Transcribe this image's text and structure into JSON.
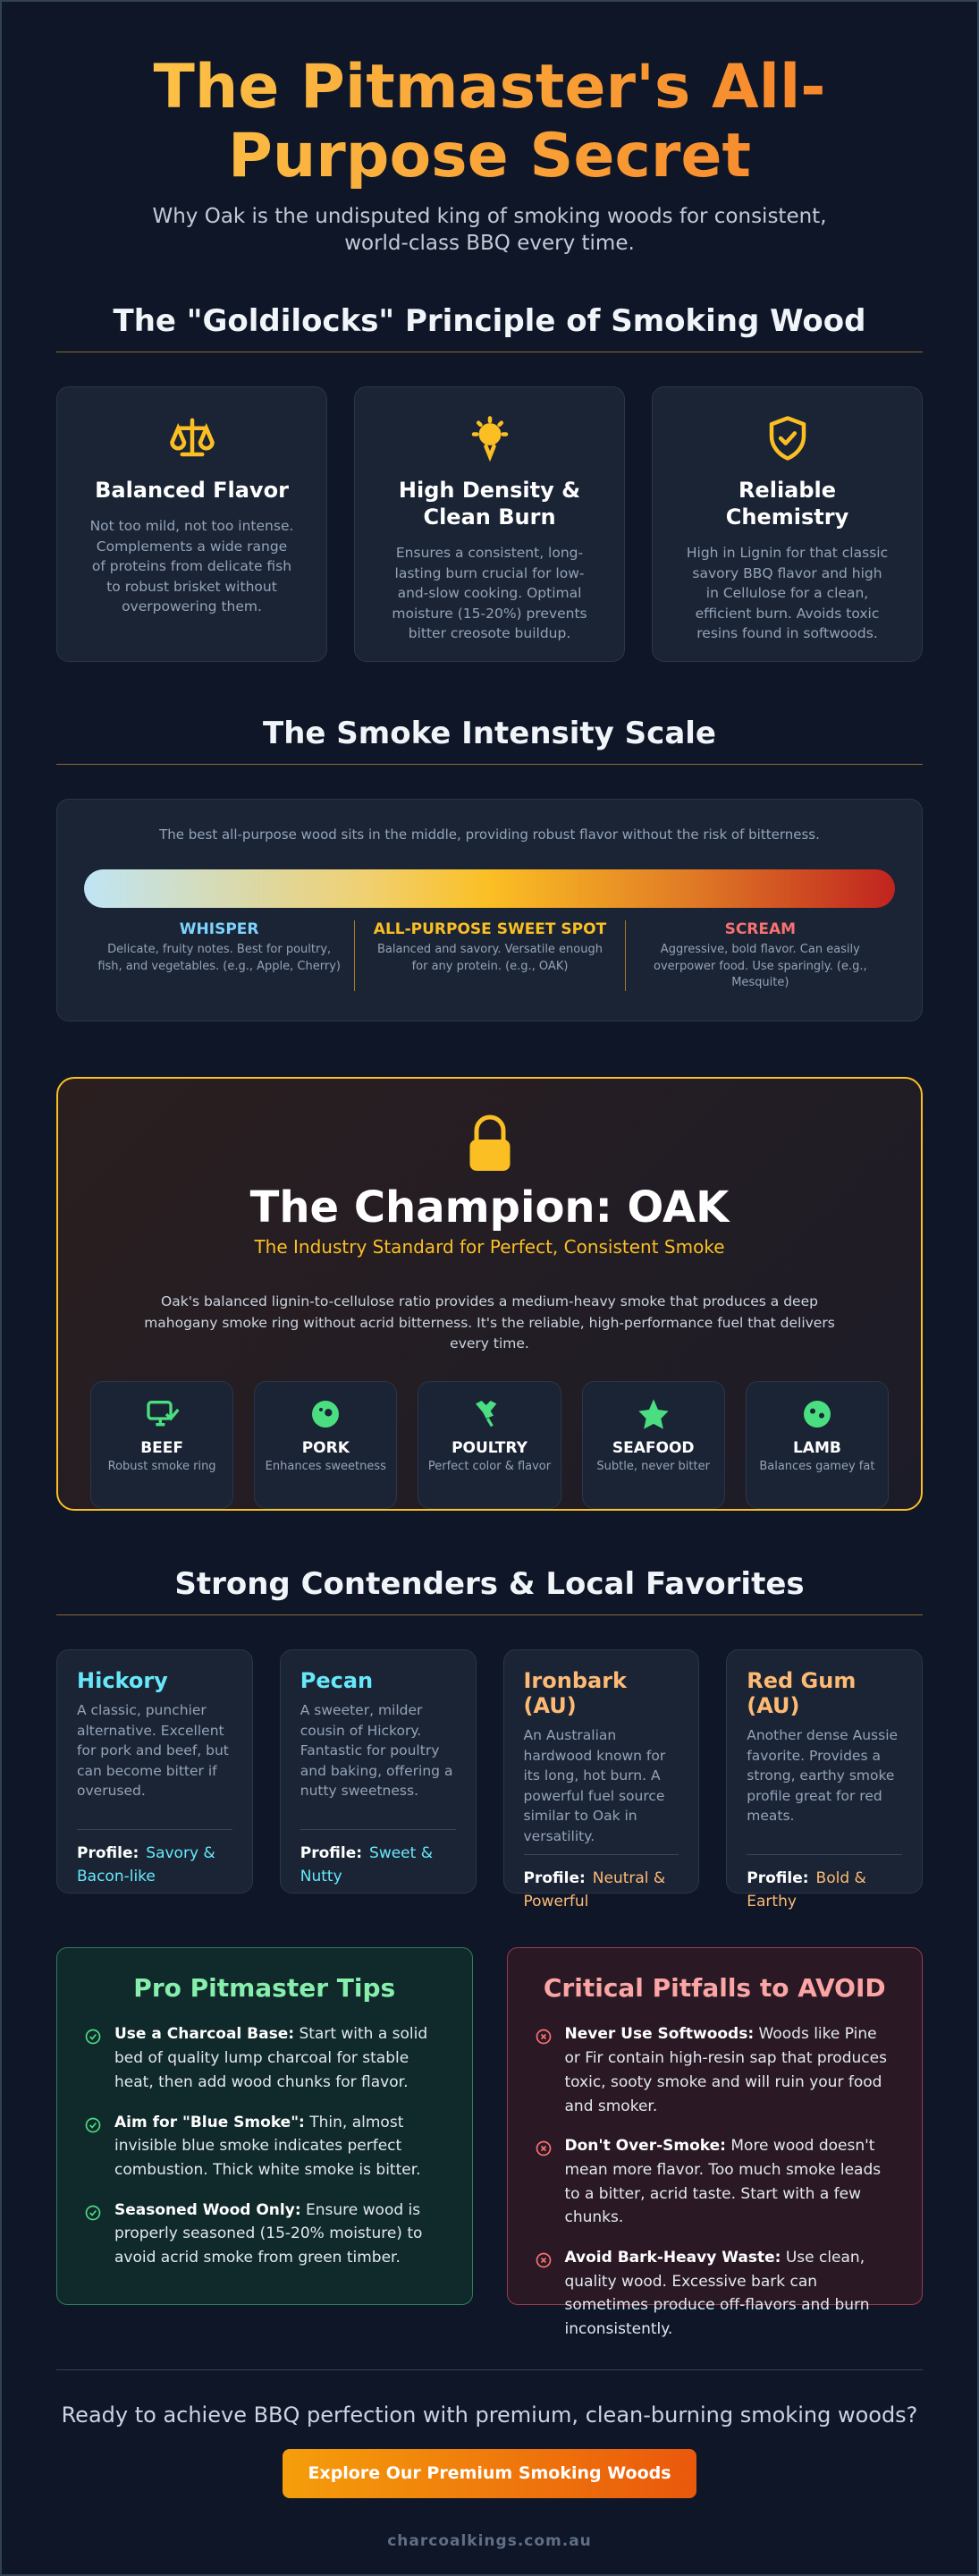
{
  "header": {
    "title": "The Pitmaster's All-Purpose Secret",
    "subtitle": "Why Oak is the undisputed king of smoking woods for consistent, world-class BBQ every time."
  },
  "goldilocks": {
    "heading": "The \"Goldilocks\" Principle of Smoking Wood",
    "cards": [
      {
        "title": "Balanced Flavor",
        "text": "Not too mild, not too intense. Complements a wide range of proteins from delicate fish to robust brisket without overpowering them."
      },
      {
        "title": "High Density & Clean Burn",
        "text": "Ensures a consistent, long-lasting burn crucial for low-and-slow cooking. Optimal moisture (15-20%) prevents bitter creosote buildup."
      },
      {
        "title": "Reliable Chemistry",
        "text": "High in Lignin for that classic savory BBQ flavor and high in Cellulose for a clean, efficient burn. Avoids toxic resins found in softwoods."
      }
    ]
  },
  "scale": {
    "heading": "The Smoke Intensity Scale",
    "intro": "The best all-purpose wood sits in the middle, providing robust flavor without the risk of bitterness.",
    "zones": [
      {
        "label": "WHISPER",
        "text": "Delicate, fruity notes. Best for poultry, fish, and vegetables. (e.g., Apple, Cherry)"
      },
      {
        "label": "ALL-PURPOSE SWEET SPOT",
        "text": "Balanced and savory. Versatile enough for any protein. (e.g., OAK)"
      },
      {
        "label": "SCREAM",
        "text": "Aggressive, bold flavor. Can easily overpower food. Use sparingly. (e.g., Mesquite)"
      }
    ]
  },
  "champion": {
    "title": "The Champion: OAK",
    "subtitle": "The Industry Standard for Perfect, Consistent Smoke",
    "text": "Oak's balanced lignin-to-cellulose ratio provides a medium-heavy smoke that produces a deep mahogany smoke ring without acrid bitterness. It's the reliable, high-performance fuel that delivers every time.",
    "uses": [
      {
        "name": "BEEF",
        "text": "Robust smoke ring"
      },
      {
        "name": "PORK",
        "text": "Enhances sweetness"
      },
      {
        "name": "POULTRY",
        "text": "Perfect color & flavor"
      },
      {
        "name": "SEAFOOD",
        "text": "Subtle, never bitter"
      },
      {
        "name": "LAMB",
        "text": "Balances gamey fat"
      }
    ]
  },
  "contenders": {
    "heading": "Strong Contenders & Local Favorites",
    "profile_label": "Profile:",
    "cards": [
      {
        "name": "Hickory",
        "text": "A classic, punchier alternative. Excellent for pork and beef, but can become bitter if overused.",
        "profile": "Savory & Bacon-like"
      },
      {
        "name": "Pecan",
        "text": "A sweeter, milder cousin of Hickory. Fantastic for poultry and baking, offering a nutty sweetness.",
        "profile": "Sweet & Nutty"
      },
      {
        "name": "Ironbark (AU)",
        "text": "An Australian hardwood known for its long, hot burn. A powerful fuel source similar to Oak in versatility.",
        "profile": "Neutral & Powerful"
      },
      {
        "name": "Red Gum (AU)",
        "text": "Another dense Aussie favorite. Provides a strong, earthy smoke profile great for red meats.",
        "profile": "Bold & Earthy"
      }
    ]
  },
  "tips": {
    "heading": "Pro Pitmaster Tips",
    "items": [
      {
        "lead": "Use a Charcoal Base:",
        "text": "Start with a solid bed of quality lump charcoal for stable heat, then add wood chunks for flavor."
      },
      {
        "lead": "Aim for \"Blue Smoke\":",
        "text": "Thin, almost invisible blue smoke indicates perfect combustion. Thick white smoke is bitter."
      },
      {
        "lead": "Seasoned Wood Only:",
        "text": "Ensure wood is properly seasoned (15-20% moisture) to avoid acrid smoke from green timber."
      }
    ]
  },
  "pitfalls": {
    "heading": "Critical Pitfalls to AVOID",
    "items": [
      {
        "lead": "Never Use Softwoods:",
        "text": "Woods like Pine or Fir contain high-resin sap that produces toxic, sooty smoke and will ruin your food and smoker."
      },
      {
        "lead": "Don't Over-Smoke:",
        "text": "More wood doesn't mean more flavor. Too much smoke leads to a bitter, acrid taste. Start with a few chunks."
      },
      {
        "lead": "Avoid Bark-Heavy Waste:",
        "text": "Use clean, quality wood. Excessive bark can sometimes produce off-flavors and burn inconsistently."
      }
    ]
  },
  "footer": {
    "cta": "Ready to achieve BBQ perfection with premium, clean-burning smoking woods?",
    "button": "Explore Our Premium Smoking Woods",
    "site": "charcoalkings.com.au"
  }
}
